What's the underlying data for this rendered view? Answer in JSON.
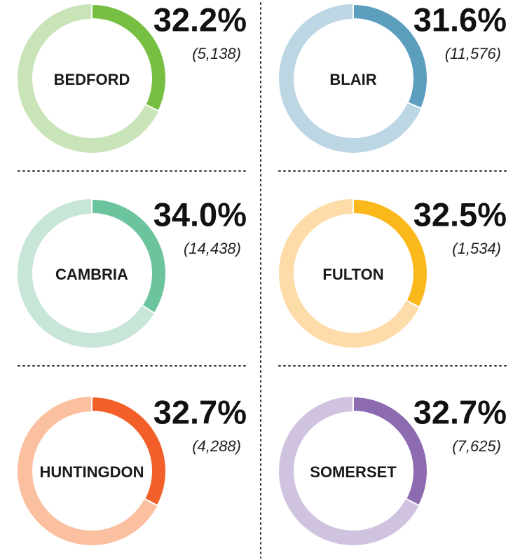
{
  "chart_data": [
    {
      "type": "pie",
      "title": "BEDFORD",
      "values": [
        32.2
      ],
      "value_labels": [
        "32.2%"
      ],
      "annotation": "(5,138)",
      "color": "#76bf43",
      "track_color": "#c9e4b8"
    },
    {
      "type": "pie",
      "title": "BLAIR",
      "values": [
        31.6
      ],
      "value_labels": [
        "31.6%"
      ],
      "annotation": "(11,576)",
      "color": "#5b9ebd",
      "track_color": "#bdd6e4"
    },
    {
      "type": "pie",
      "title": "CAMBRIA",
      "values": [
        34.0
      ],
      "value_labels": [
        "34.0%"
      ],
      "annotation": "(14,438)",
      "color": "#6cc49e",
      "track_color": "#c8e6d8"
    },
    {
      "type": "pie",
      "title": "FULTON",
      "values": [
        32.5
      ],
      "value_labels": [
        "32.5%"
      ],
      "annotation": "(1,534)",
      "color": "#fbb81a",
      "track_color": "#fddcaa"
    },
    {
      "type": "pie",
      "title": "HUNTINGDON",
      "values": [
        32.7
      ],
      "value_labels": [
        "32.7%"
      ],
      "annotation": "(4,288)",
      "color": "#f35f29",
      "track_color": "#fbc0a0"
    },
    {
      "type": "pie",
      "title": "SOMERSET",
      "values": [
        32.7
      ],
      "value_labels": [
        "32.7%"
      ],
      "annotation": "(7,625)",
      "color": "#8c6bb1",
      "track_color": "#d0c3df"
    }
  ]
}
